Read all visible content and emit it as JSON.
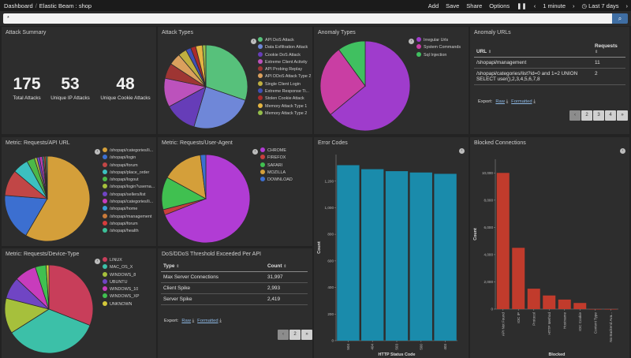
{
  "header": {
    "breadcrumb_root": "Dashboard",
    "breadcrumb_separator": "/",
    "breadcrumb_current": "Elastic Beam : shop",
    "actions": [
      "Add",
      "Save",
      "Share",
      "Options"
    ],
    "pause_icon": "pause-icon",
    "refresh": "1 minute",
    "time_range": "Last 7 days"
  },
  "search": {
    "value": "*",
    "button_icon": "search-icon"
  },
  "attack_summary": {
    "title": "Attack Summary",
    "metrics": [
      {
        "value": "175",
        "label": "Total Attacks"
      },
      {
        "value": "53",
        "label": "Unique IP Attacks"
      },
      {
        "value": "48",
        "label": "Unique Cookie Attacks"
      }
    ]
  },
  "attack_types": {
    "title": "Attack Types",
    "legend": [
      {
        "label": "API DoS Attack",
        "color": "#57c17b"
      },
      {
        "label": "Data Exfiltration Attack",
        "color": "#6f87d8"
      },
      {
        "label": "Cookie DoS Attack",
        "color": "#663db8"
      },
      {
        "label": "Extreme Client Activity",
        "color": "#bc52bc"
      },
      {
        "label": "API Probing Replay",
        "color": "#9e3533"
      },
      {
        "label": "API DDoS Attack Type 2",
        "color": "#daa05d"
      },
      {
        "label": "Single Client Login",
        "color": "#bfaf40"
      },
      {
        "label": "Extreme Response Ti...",
        "color": "#4050b5"
      },
      {
        "label": "Stolen Cookie Attack",
        "color": "#aa2b2b"
      },
      {
        "label": "Memory Attack Type 1",
        "color": "#e4b542"
      },
      {
        "label": "Memory Attack Type 2",
        "color": "#94bd4a"
      }
    ]
  },
  "anomaly_types": {
    "title": "Anomaly Types",
    "legend": [
      {
        "label": "Irregular Urls",
        "color": "#9f3ccc"
      },
      {
        "label": "System Commands",
        "color": "#c93ea3"
      },
      {
        "label": "Sql Injection",
        "color": "#40c060"
      }
    ]
  },
  "anomaly_urls": {
    "title": "Anomaly URLs",
    "columns": [
      "URL",
      "Requests"
    ],
    "rows": [
      {
        "url": "/shopapi/management",
        "requests": "11"
      },
      {
        "url": "/shopapi/categories/list?id=0 and 1=2 UNION SELECT user(),2,3,4,5,6,7,8",
        "requests": "2"
      }
    ],
    "export_label": "Export:",
    "raw": "Raw",
    "formatted": "Formatted",
    "pages": [
      "‹",
      "2",
      "3",
      "4",
      "»"
    ]
  },
  "requests_api_url": {
    "title": "Metric: Requests/API URL",
    "legend": [
      {
        "label": "/shopapi/categories/li...",
        "color": "#d49f3a"
      },
      {
        "label": "/shopapi/login",
        "color": "#3c6fd0"
      },
      {
        "label": "/shopapi/forum",
        "color": "#c14646"
      },
      {
        "label": "/shopapi/place_order",
        "color": "#3cc0c0"
      },
      {
        "label": "/shopapi/logout",
        "color": "#4cb848"
      },
      {
        "label": "/shopapi/login?userna...",
        "color": "#a6c03c"
      },
      {
        "label": "/shopapi/sellers/list",
        "color": "#7045c4"
      },
      {
        "label": "/shopapi/categories/li...",
        "color": "#c83cbc"
      },
      {
        "label": "/shopapi/home",
        "color": "#3a9fd8"
      },
      {
        "label": "/shopapi/management",
        "color": "#c87a3a"
      },
      {
        "label": "/shopapi/forum",
        "color": "#d63c3c"
      },
      {
        "label": "/shopapi/health",
        "color": "#3cc098"
      }
    ]
  },
  "requests_user_agent": {
    "title": "Metric: Requests/User-Agent",
    "legend": [
      {
        "label": "CHROME",
        "color": "#b13cd4"
      },
      {
        "label": "FIREFOX",
        "color": "#c83e3e"
      },
      {
        "label": "SAFARI",
        "color": "#40c050"
      },
      {
        "label": "MOZILLA",
        "color": "#d49f3a"
      },
      {
        "label": "DOWNLOAD",
        "color": "#3c6fd0"
      }
    ]
  },
  "requests_device_type": {
    "title": "Metric: Requests/Device-Type",
    "legend": [
      {
        "label": "LINUX",
        "color": "#c83e5a"
      },
      {
        "label": "MAC_OS_X",
        "color": "#3cc0a8"
      },
      {
        "label": "WINDOWS_8",
        "color": "#a6c03c"
      },
      {
        "label": "UBUNTU",
        "color": "#7045c4"
      },
      {
        "label": "WINDOWS_10",
        "color": "#c83cbc"
      },
      {
        "label": "WINDOWS_XP",
        "color": "#40c050"
      },
      {
        "label": "UNKNOWN",
        "color": "#d4c83a"
      }
    ]
  },
  "dos_threshold": {
    "title": "DoS/DDoS Threshold Exceeded Per API",
    "columns": [
      "Type",
      "Count"
    ],
    "rows": [
      {
        "type": "Max Server Connections",
        "count": "31,997"
      },
      {
        "type": "Client Spike",
        "count": "2,993"
      },
      {
        "type": "Server Spike",
        "count": "2,419"
      }
    ],
    "export_label": "Export:",
    "raw": "Raw",
    "formatted": "Formatted",
    "pages": [
      "‹",
      "2",
      "»"
    ]
  },
  "chart_data": [
    {
      "type": "pie",
      "title": "Attack Types",
      "labels": [
        "API DoS Attack",
        "Data Exfiltration Attack",
        "Cookie DoS Attack",
        "Extreme Client Activity",
        "API Probing Replay",
        "API DDoS Attack Type 2",
        "Single Client Login",
        "Extreme Response Ti...",
        "Stolen Cookie Attack",
        "Memory Attack Type 1",
        "Memory Attack Type 2"
      ],
      "values": [
        46,
        37,
        19,
        17,
        9,
        7,
        5,
        3,
        3,
        4,
        2
      ],
      "colors": [
        "#57c17b",
        "#6f87d8",
        "#663db8",
        "#bc52bc",
        "#9e3533",
        "#daa05d",
        "#bfaf40",
        "#4050b5",
        "#aa2b2b",
        "#e4b542",
        "#94bd4a"
      ]
    },
    {
      "type": "pie",
      "title": "Anomaly Types",
      "labels": [
        "Irregular Urls",
        "System Commands",
        "Sql Injection"
      ],
      "values": [
        64,
        26,
        10
      ],
      "colors": [
        "#9f3ccc",
        "#c93ea3",
        "#40c060"
      ]
    },
    {
      "type": "pie",
      "title": "Metric: Requests/API URL",
      "labels": [
        "/shopapi/categories/li...",
        "/shopapi/login",
        "/shopapi/forum",
        "/shopapi/place_order",
        "/shopapi/logout",
        "/shopapi/login?userna...",
        "/shopapi/sellers/list",
        "/shopapi/categories/li...",
        "/shopapi/home",
        "/shopapi/management",
        "/shopapi/forum",
        "/shopapi/health"
      ],
      "values": [
        59,
        18,
        10,
        6,
        3,
        1,
        1,
        1,
        0.5,
        0.5,
        0.5,
        0.5
      ],
      "colors": [
        "#d49f3a",
        "#3c6fd0",
        "#c14646",
        "#3cc0c0",
        "#4cb848",
        "#a6c03c",
        "#7045c4",
        "#c83cbc",
        "#3a9fd8",
        "#c87a3a",
        "#d63c3c",
        "#3cc098"
      ]
    },
    {
      "type": "pie",
      "title": "Metric: Requests/User-Agent",
      "labels": [
        "CHROME",
        "FIREFOX",
        "SAFARI",
        "MOZILLA",
        "DOWNLOAD"
      ],
      "values": [
        69,
        2,
        12,
        15,
        2
      ],
      "colors": [
        "#b13cd4",
        "#c83e3e",
        "#40c050",
        "#d49f3a",
        "#3c6fd0"
      ]
    },
    {
      "type": "pie",
      "title": "Metric: Requests/Device-Type",
      "labels": [
        "LINUX",
        "MAC_OS_X",
        "WINDOWS_8",
        "UBUNTU",
        "WINDOWS_10",
        "WINDOWS_XP",
        "UNKNOWN"
      ],
      "values": [
        31,
        35,
        13,
        8,
        8,
        4,
        1
      ],
      "colors": [
        "#c83e5a",
        "#3cc0a8",
        "#a6c03c",
        "#7045c4",
        "#c83cbc",
        "#40c050",
        "#d4c83a"
      ]
    },
    {
      "type": "bar",
      "title": "Error Codes",
      "categories": [
        "504",
        "404",
        "503",
        "500",
        "403"
      ],
      "values": [
        1320,
        1290,
        1275,
        1265,
        1255
      ],
      "ylim": [
        0,
        1400
      ],
      "yticks": [
        0,
        200,
        400,
        600,
        800,
        1000,
        1200
      ],
      "xlabel": "HTTP Status Code",
      "ylabel": "Count",
      "color": "#1a8bab"
    },
    {
      "type": "bar",
      "title": "Blocked Connections",
      "categories": [
        "API Not Found",
        "IOC IP",
        "Protocol",
        "HTTP Method",
        "Hostname",
        "IOC Cookie",
        "Content Type",
        "No Backend Ava..."
      ],
      "values": [
        10000,
        4500,
        1500,
        1000,
        700,
        450,
        5,
        5
      ],
      "ylim": [
        0,
        11000
      ],
      "yticks": [
        0,
        2000,
        4000,
        6000,
        8000,
        10000
      ],
      "xlabel": "Blocked",
      "ylabel": "Count",
      "color": "#c13b2c"
    }
  ]
}
